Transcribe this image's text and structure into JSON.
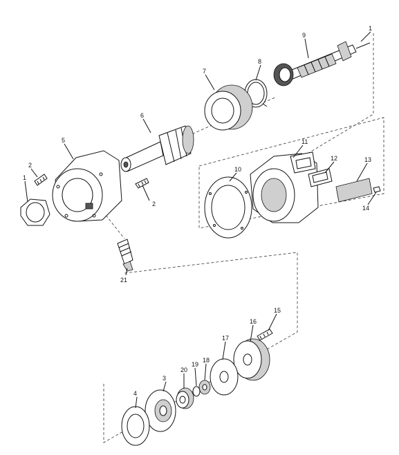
{
  "callouts": [
    {
      "id": "1",
      "label": "1"
    },
    {
      "id": "1b",
      "label": "1"
    },
    {
      "id": "2",
      "label": "2"
    },
    {
      "id": "2b",
      "label": "2"
    },
    {
      "id": "3",
      "label": "3"
    },
    {
      "id": "4",
      "label": "4"
    },
    {
      "id": "5",
      "label": "5"
    },
    {
      "id": "6",
      "label": "6"
    },
    {
      "id": "7",
      "label": "7"
    },
    {
      "id": "8",
      "label": "8"
    },
    {
      "id": "9",
      "label": "9"
    },
    {
      "id": "10",
      "label": "10"
    },
    {
      "id": "11",
      "label": "11"
    },
    {
      "id": "12",
      "label": "12"
    },
    {
      "id": "13",
      "label": "13"
    },
    {
      "id": "14",
      "label": "14"
    },
    {
      "id": "15",
      "label": "15"
    },
    {
      "id": "16",
      "label": "16"
    },
    {
      "id": "17",
      "label": "17"
    },
    {
      "id": "18",
      "label": "18"
    },
    {
      "id": "19",
      "label": "19"
    },
    {
      "id": "20",
      "label": "20"
    },
    {
      "id": "21",
      "label": "21"
    }
  ]
}
